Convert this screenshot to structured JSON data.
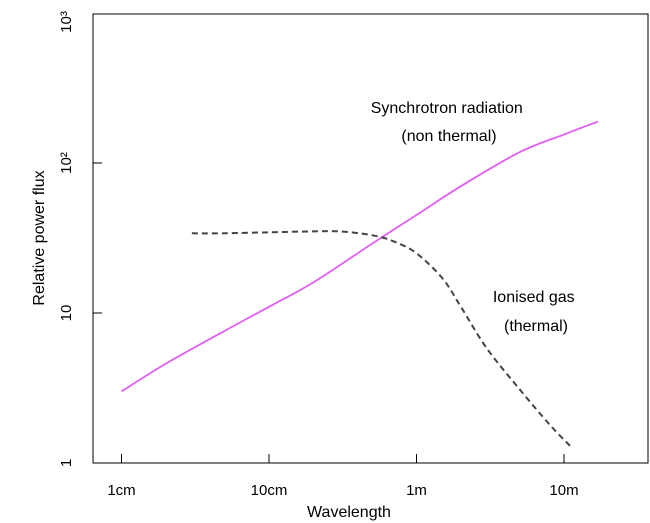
{
  "chart_data": {
    "type": "line",
    "title": "",
    "xlabel": "Wavelength",
    "ylabel": "Relative power flux",
    "x_scale": "log",
    "y_scale": "log",
    "x_unit": "m",
    "xlim": [
      0.005,
      30
    ],
    "ylim": [
      1,
      1000
    ],
    "x_ticks": [
      {
        "value": 0.01,
        "label": "1cm"
      },
      {
        "value": 0.1,
        "label": "10cm"
      },
      {
        "value": 1,
        "label": "1m"
      },
      {
        "value": 10,
        "label": "10m"
      }
    ],
    "y_ticks": [
      {
        "value": 1,
        "label": "1"
      },
      {
        "value": 10,
        "label": "10"
      },
      {
        "value": 100,
        "label": "10²"
      },
      {
        "value": 1000,
        "label": "10³"
      }
    ],
    "grid": false,
    "series": [
      {
        "name": "Synchrotron radiation (non thermal)",
        "color": "#e060f0",
        "line_style": "solid",
        "x": [
          0.01,
          0.02,
          0.05,
          0.1,
          0.2,
          0.5,
          1,
          2,
          5,
          10,
          17
        ],
        "y": [
          3,
          4.6,
          7.6,
          11,
          16,
          29,
          45,
          70,
          118,
          155,
          189
        ]
      },
      {
        "name": "Ionised gas (thermal)",
        "color": "#444444",
        "line_style": "dashed",
        "x": [
          0.03,
          0.05,
          0.1,
          0.2,
          0.3,
          0.5,
          0.7,
          1,
          1.5,
          2,
          3,
          5,
          8,
          11
        ],
        "y": [
          34,
          34,
          34.5,
          35,
          35,
          33,
          30,
          25,
          17,
          11,
          5.8,
          3.1,
          1.8,
          1.3
        ]
      }
    ],
    "annotations": [
      {
        "lines": [
          "Synchrotron radiation",
          "(non thermal)"
        ],
        "series": "Synchrotron radiation (non thermal)"
      },
      {
        "lines": [
          "Ionised gas",
          "(thermal)"
        ],
        "series": "Ionised gas (thermal)"
      }
    ]
  }
}
